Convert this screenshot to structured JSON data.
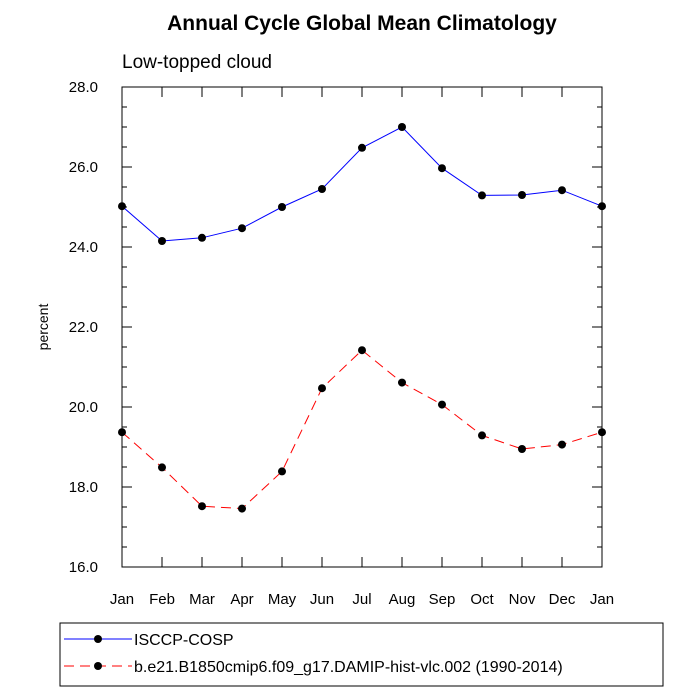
{
  "chart_data": {
    "type": "line",
    "title": "Annual Cycle Global Mean Climatology",
    "subtitle": "Low-topped cloud",
    "xlabel": "",
    "ylabel": "percent",
    "categories": [
      "Jan",
      "Feb",
      "Mar",
      "Apr",
      "May",
      "Jun",
      "Jul",
      "Aug",
      "Sep",
      "Oct",
      "Nov",
      "Dec",
      "Jan"
    ],
    "ylim": [
      16.0,
      28.0
    ],
    "yticks": [
      "16.0",
      "18.0",
      "20.0",
      "22.0",
      "24.0",
      "26.0",
      "28.0"
    ],
    "grid": false,
    "legend_position": "bottom",
    "series": [
      {
        "name": "ISCCP-COSP",
        "color": "#0000ff",
        "dash": "solid",
        "values": [
          25.02,
          24.15,
          24.23,
          24.47,
          25.0,
          25.45,
          26.48,
          27.0,
          25.97,
          25.29,
          25.3,
          25.42,
          25.02
        ]
      },
      {
        "name": "b.e21.B1850cmip6.f09_g17.DAMIP-hist-vlc.002 (1990-2014)",
        "color": "#ff0000",
        "dash": "dashed",
        "values": [
          19.37,
          18.49,
          17.52,
          17.46,
          18.39,
          20.47,
          21.42,
          20.61,
          20.06,
          19.29,
          18.95,
          19.06,
          19.37
        ]
      }
    ]
  }
}
